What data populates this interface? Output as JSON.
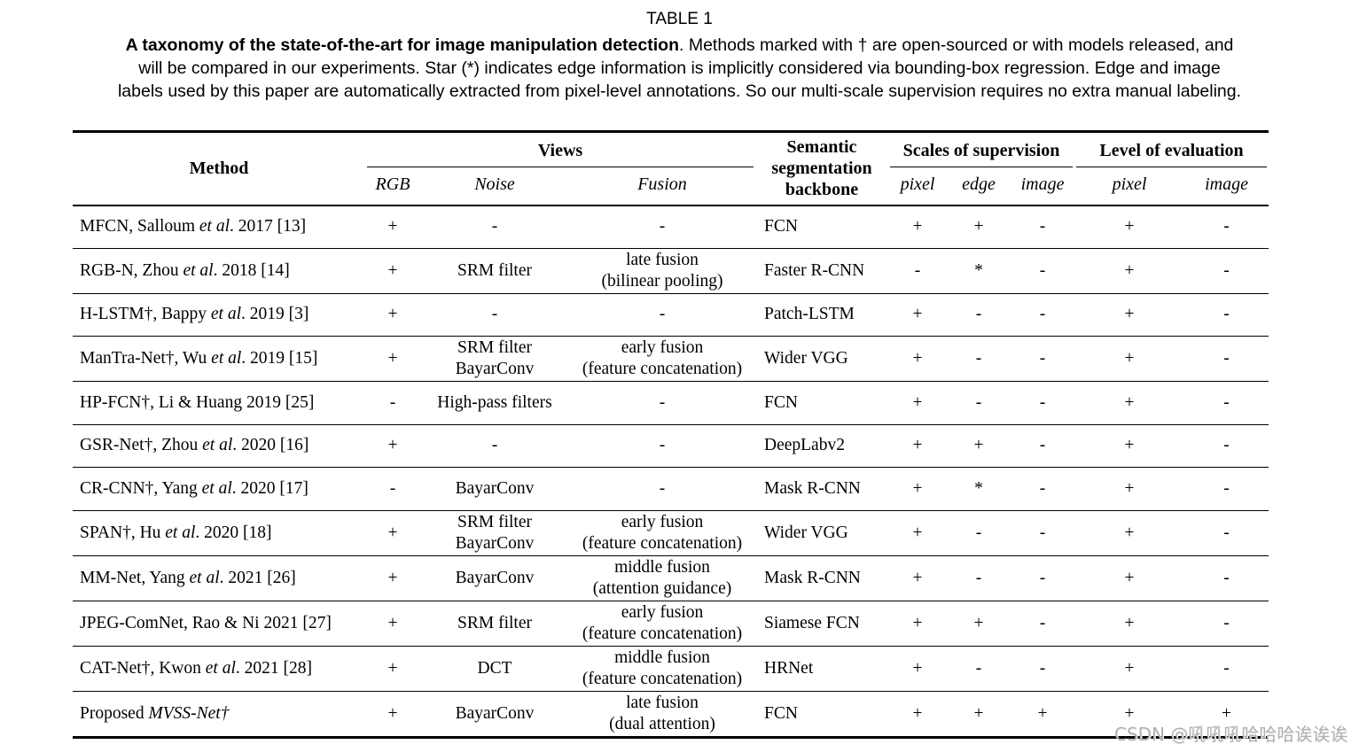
{
  "page": {
    "title": "TABLE 1",
    "caption_lines": [
      [
        {
          "t": "A taxonomy of the state-of-the-art for image manipulation detection",
          "b": true
        },
        {
          "t": ". Methods marked with † are open-sourced or with models released, and",
          "b": false
        }
      ],
      [
        {
          "t": "will be compared in our experiments. Star (*) indicates edge information is implicitly considered via bounding-box regression. Edge and image",
          "b": false
        }
      ],
      [
        {
          "t": "labels used by this paper are automatically extracted from pixel-level annotations. So our multi-scale supervision requires no extra manual labeling.",
          "b": false
        }
      ]
    ]
  },
  "table": {
    "headers": {
      "method": "Method",
      "views": "Views",
      "rgb": "RGB",
      "noise": "Noise",
      "fusion": "Fusion",
      "backbone": "Semantic segmentation backbone",
      "supervision": "Scales of supervision",
      "sup_pixel": "pixel",
      "sup_edge": "edge",
      "sup_image": "image",
      "evaluation": "Level of evaluation",
      "eval_pixel": "pixel",
      "eval_image": "image"
    },
    "rows": [
      {
        "method": [
          {
            "t": "MFCN, Salloum ",
            "i": false
          },
          {
            "t": "et al",
            "i": true
          },
          {
            "t": ". 2017 [13]",
            "i": false
          }
        ],
        "rgb": "+",
        "noise": [
          "-"
        ],
        "fusion": [
          "-"
        ],
        "backbone": "FCN",
        "supervision": {
          "pixel": "+",
          "edge": "+",
          "image": "-"
        },
        "evaluation": {
          "pixel": "+",
          "image": "-"
        }
      },
      {
        "method": [
          {
            "t": "RGB-N, Zhou ",
            "i": false
          },
          {
            "t": "et al",
            "i": true
          },
          {
            "t": ". 2018 [14]",
            "i": false
          }
        ],
        "rgb": "+",
        "noise": [
          "SRM filter"
        ],
        "fusion": [
          "late fusion",
          "(bilinear pooling)"
        ],
        "backbone": "Faster R-CNN",
        "supervision": {
          "pixel": "-",
          "edge": "*",
          "image": "-"
        },
        "evaluation": {
          "pixel": "+",
          "image": "-"
        }
      },
      {
        "method": [
          {
            "t": "H-LSTM†, Bappy ",
            "i": false
          },
          {
            "t": "et al",
            "i": true
          },
          {
            "t": ". 2019 [3]",
            "i": false
          }
        ],
        "rgb": "+",
        "noise": [
          "-"
        ],
        "fusion": [
          "-"
        ],
        "backbone": "Patch-LSTM",
        "supervision": {
          "pixel": "+",
          "edge": "-",
          "image": "-"
        },
        "evaluation": {
          "pixel": "+",
          "image": "-"
        }
      },
      {
        "method": [
          {
            "t": "ManTra-Net†, Wu ",
            "i": false
          },
          {
            "t": "et al",
            "i": true
          },
          {
            "t": ". 2019 [15]",
            "i": false
          }
        ],
        "rgb": "+",
        "noise": [
          "SRM filter",
          "BayarConv"
        ],
        "fusion": [
          "early fusion",
          "(feature concatenation)"
        ],
        "backbone": "Wider VGG",
        "supervision": {
          "pixel": "+",
          "edge": "-",
          "image": "-"
        },
        "evaluation": {
          "pixel": "+",
          "image": "-"
        }
      },
      {
        "method": [
          {
            "t": "HP-FCN†, Li & Huang 2019 [25]",
            "i": false
          }
        ],
        "rgb": "-",
        "noise": [
          "High-pass filters"
        ],
        "fusion": [
          "-"
        ],
        "backbone": "FCN",
        "supervision": {
          "pixel": "+",
          "edge": "-",
          "image": "-"
        },
        "evaluation": {
          "pixel": "+",
          "image": "-"
        }
      },
      {
        "method": [
          {
            "t": "GSR-Net†, Zhou ",
            "i": false
          },
          {
            "t": "et al",
            "i": true
          },
          {
            "t": ". 2020 [16]",
            "i": false
          }
        ],
        "rgb": "+",
        "noise": [
          "-"
        ],
        "fusion": [
          "-"
        ],
        "backbone": "DeepLabv2",
        "supervision": {
          "pixel": "+",
          "edge": "+",
          "image": "-"
        },
        "evaluation": {
          "pixel": "+",
          "image": "-"
        }
      },
      {
        "method": [
          {
            "t": "CR-CNN†, Yang ",
            "i": false
          },
          {
            "t": "et al",
            "i": true
          },
          {
            "t": ". 2020 [17]",
            "i": false
          }
        ],
        "rgb": "-",
        "noise": [
          "BayarConv"
        ],
        "fusion": [
          "-"
        ],
        "backbone": "Mask R-CNN",
        "supervision": {
          "pixel": "+",
          "edge": "*",
          "image": "-"
        },
        "evaluation": {
          "pixel": "+",
          "image": "-"
        }
      },
      {
        "method": [
          {
            "t": "SPAN†, Hu ",
            "i": false
          },
          {
            "t": "et al",
            "i": true
          },
          {
            "t": ". 2020 [18]",
            "i": false
          }
        ],
        "rgb": "+",
        "noise": [
          "SRM filter",
          "BayarConv"
        ],
        "fusion": [
          "early fusion",
          "(feature concatenation)"
        ],
        "backbone": "Wider VGG",
        "supervision": {
          "pixel": "+",
          "edge": "-",
          "image": "-"
        },
        "evaluation": {
          "pixel": "+",
          "image": "-"
        }
      },
      {
        "method": [
          {
            "t": "MM-Net, Yang ",
            "i": false
          },
          {
            "t": "et al",
            "i": true
          },
          {
            "t": ". 2021 [26]",
            "i": false
          }
        ],
        "rgb": "+",
        "noise": [
          "BayarConv"
        ],
        "fusion": [
          "middle fusion",
          "(attention guidance)"
        ],
        "backbone": "Mask R-CNN",
        "supervision": {
          "pixel": "+",
          "edge": "-",
          "image": "-"
        },
        "evaluation": {
          "pixel": "+",
          "image": "-"
        }
      },
      {
        "method": [
          {
            "t": "JPEG-ComNet, Rao & Ni 2021 [27]",
            "i": false
          }
        ],
        "rgb": "+",
        "noise": [
          "SRM filter"
        ],
        "fusion": [
          "early fusion",
          "(feature concatenation)"
        ],
        "backbone": "Siamese FCN",
        "supervision": {
          "pixel": "+",
          "edge": "+",
          "image": "-"
        },
        "evaluation": {
          "pixel": "+",
          "image": "-"
        }
      },
      {
        "method": [
          {
            "t": "CAT-Net†, Kwon ",
            "i": false
          },
          {
            "t": "et al",
            "i": true
          },
          {
            "t": ". 2021 [28]",
            "i": false
          }
        ],
        "rgb": "+",
        "noise": [
          "DCT"
        ],
        "fusion": [
          "middle fusion",
          "(feature concatenation)"
        ],
        "backbone": "HRNet",
        "supervision": {
          "pixel": "+",
          "edge": "-",
          "image": "-"
        },
        "evaluation": {
          "pixel": "+",
          "image": "-"
        }
      },
      {
        "method": [
          {
            "t": "Proposed ",
            "i": false
          },
          {
            "t": "MVSS-Net†",
            "i": true
          }
        ],
        "rgb": "+",
        "noise": [
          "BayarConv"
        ],
        "fusion": [
          "late fusion",
          "(dual attention)"
        ],
        "backbone": "FCN",
        "supervision": {
          "pixel": "+",
          "edge": "+",
          "image": "+"
        },
        "evaluation": {
          "pixel": "+",
          "image": "+"
        }
      }
    ]
  },
  "watermark": {
    "text": "CSDN @吼吼吼哈哈哈诶诶诶"
  },
  "colors": {
    "text": "#000000",
    "background": "#ffffff",
    "rule": "#000000",
    "watermark": "#b0b0b0"
  }
}
